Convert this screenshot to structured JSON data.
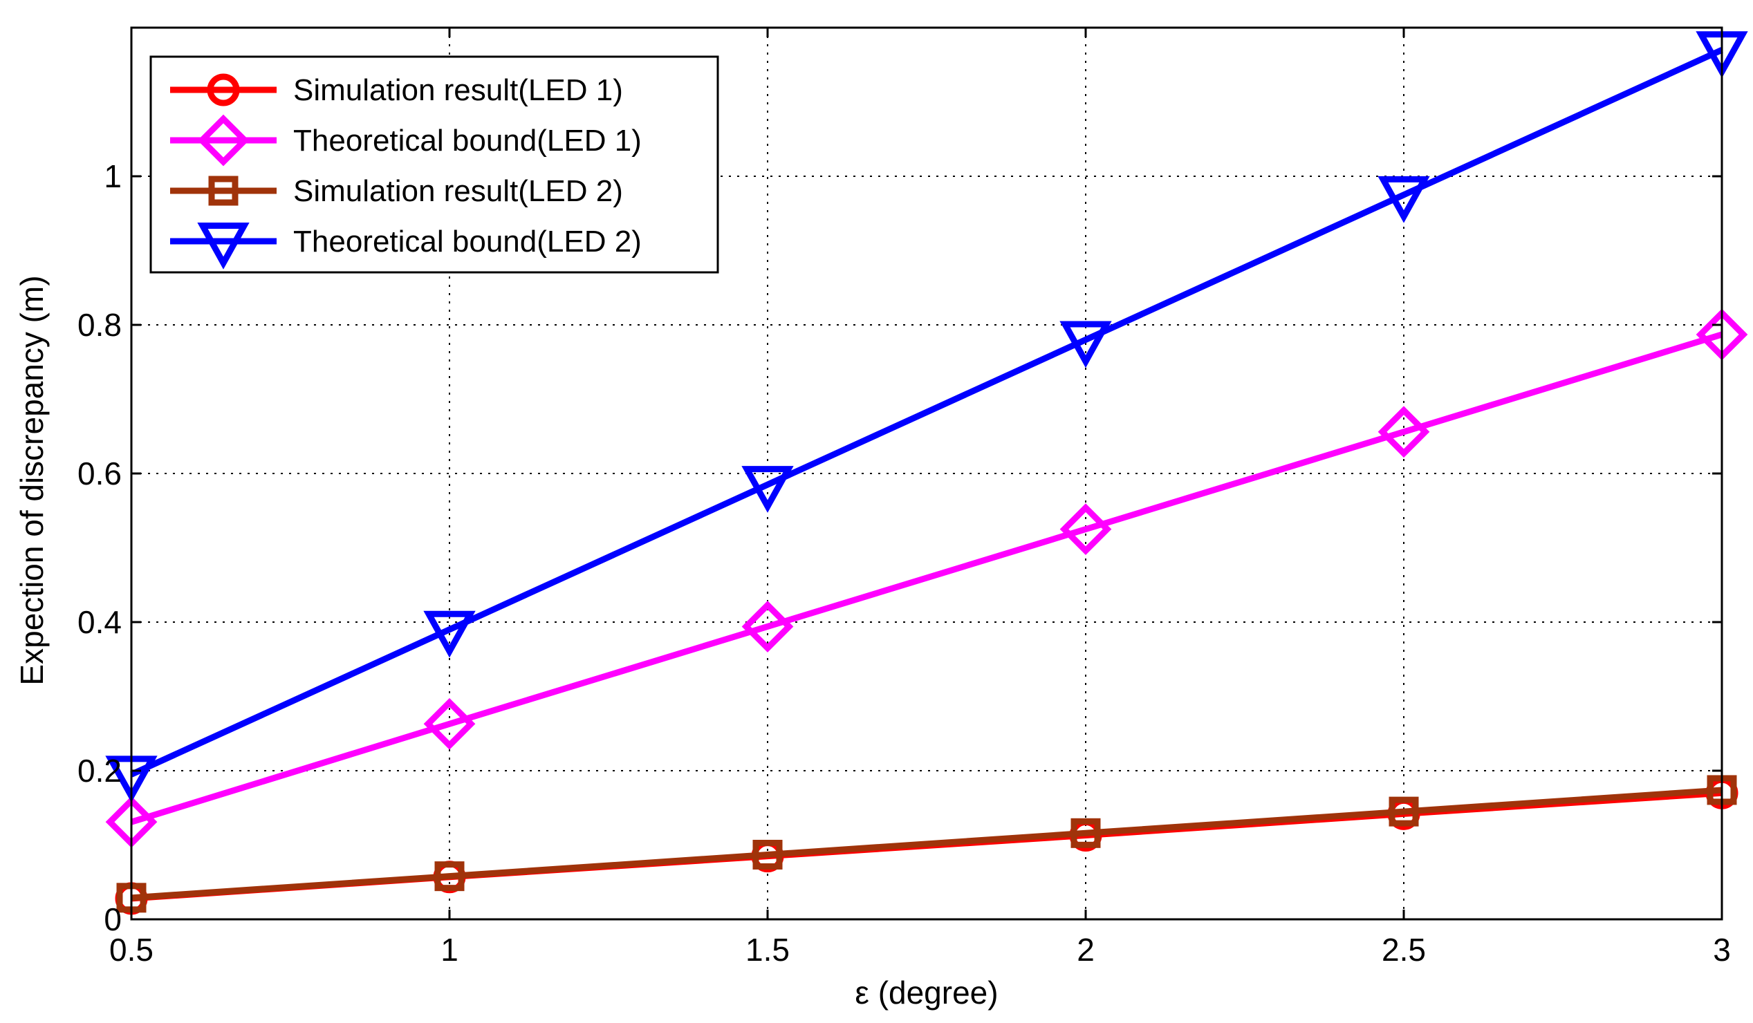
{
  "chart_data": {
    "type": "line",
    "title": "",
    "xlabel": "ε (degree)",
    "ylabel": "Expection of discrepancy (m)",
    "xlim": [
      0.5,
      3
    ],
    "ylim": [
      0,
      1.2
    ],
    "grid": true,
    "legend_position": "top-left",
    "x": [
      0.5,
      1,
      1.5,
      2,
      2.5,
      3
    ],
    "x_ticks": [
      {
        "value": 0.5,
        "label": "0.5"
      },
      {
        "value": 1,
        "label": "1"
      },
      {
        "value": 1.5,
        "label": "1.5"
      },
      {
        "value": 2,
        "label": "2"
      },
      {
        "value": 2.5,
        "label": "2.5"
      },
      {
        "value": 3,
        "label": "3"
      }
    ],
    "y_ticks": [
      {
        "value": 0,
        "label": "0"
      },
      {
        "value": 0.2,
        "label": "0.2"
      },
      {
        "value": 0.4,
        "label": "0.4"
      },
      {
        "value": 0.6,
        "label": "0.6"
      },
      {
        "value": 0.8,
        "label": "0.8"
      },
      {
        "value": 1,
        "label": "1"
      }
    ],
    "series": [
      {
        "name": "Simulation result(LED 1)",
        "color": "#ff0000",
        "marker": "circle",
        "values": [
          0.028,
          0.057,
          0.085,
          0.113,
          0.142,
          0.17
        ]
      },
      {
        "name": "Theoretical bound(LED 1)",
        "color": "#ff00ff",
        "marker": "diamond",
        "values": [
          0.131,
          0.263,
          0.394,
          0.525,
          0.656,
          0.787
        ]
      },
      {
        "name": "Simulation result(LED 2)",
        "color": "#a0330a",
        "marker": "square",
        "values": [
          0.029,
          0.058,
          0.087,
          0.116,
          0.145,
          0.174
        ]
      },
      {
        "name": "Theoretical bound(LED 2)",
        "color": "#0000ff",
        "marker": "triangle-down",
        "values": [
          0.195,
          0.39,
          0.585,
          0.78,
          0.975,
          1.17
        ]
      }
    ]
  }
}
